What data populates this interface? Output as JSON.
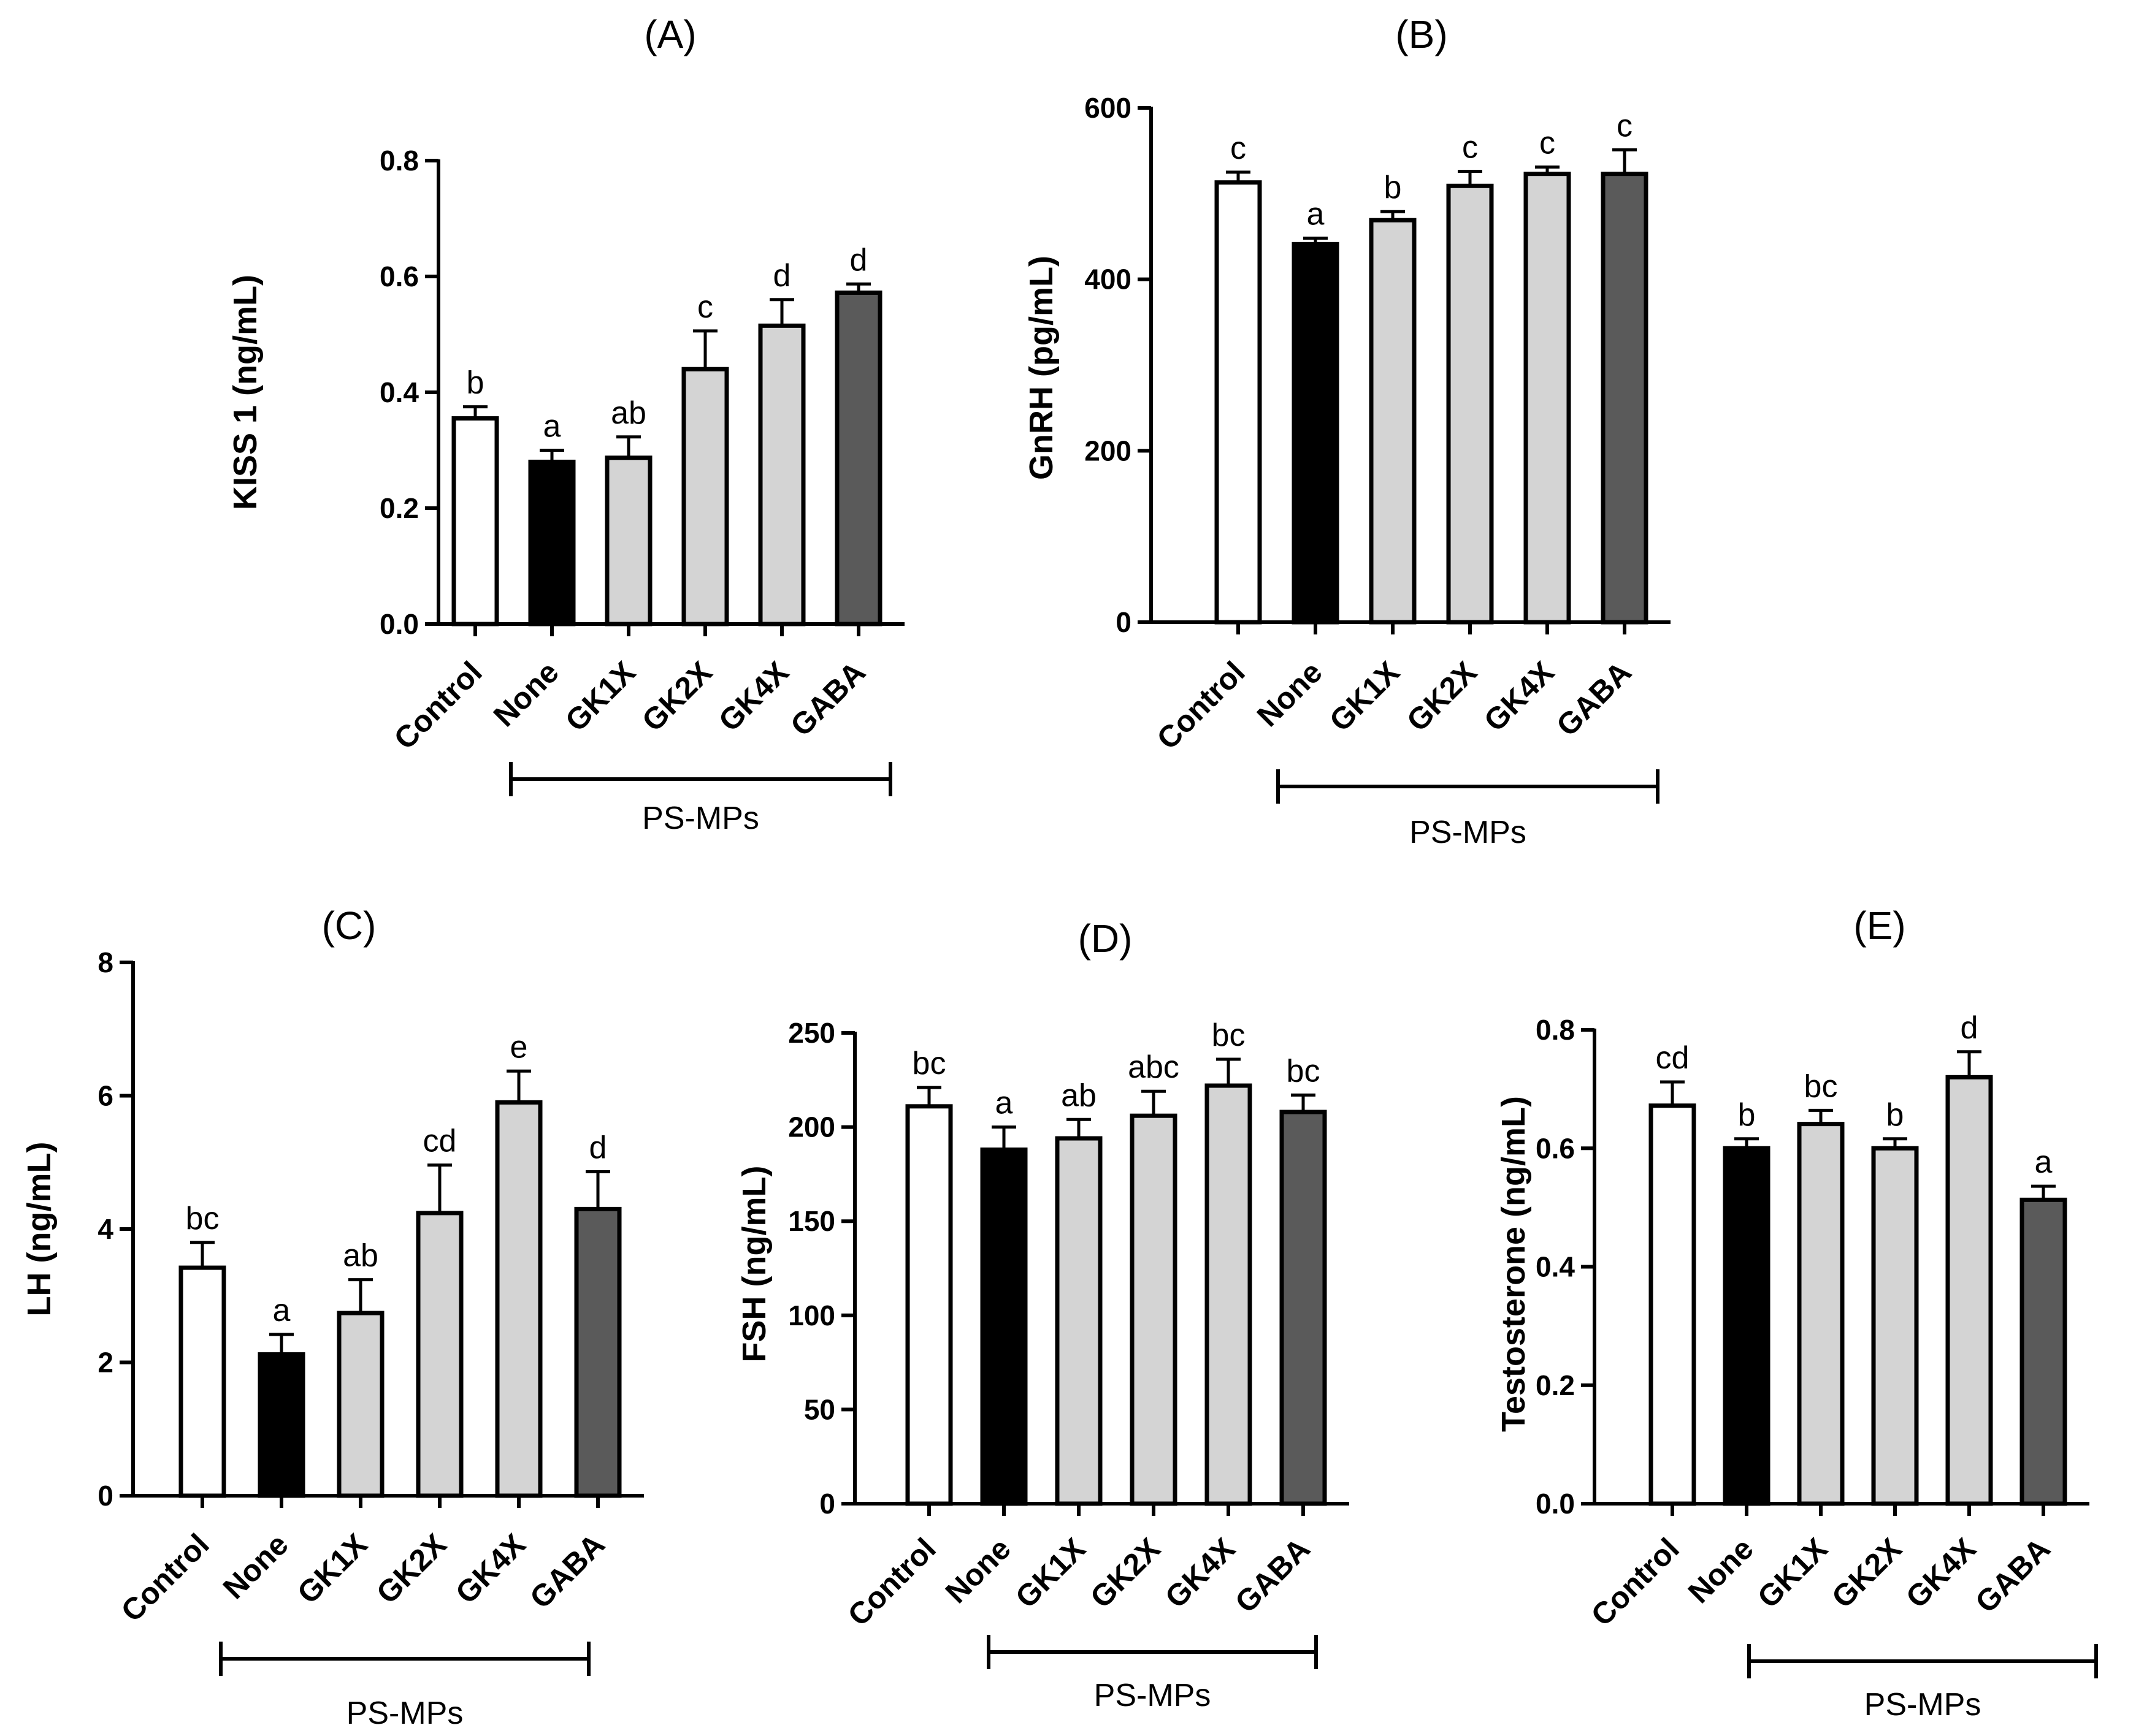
{
  "chart_data": [
    {
      "id": "A",
      "type": "bar",
      "title": "(A)",
      "ylabel": "KISS 1 (ng/mL)",
      "categories": [
        "Control",
        "None",
        "GK1X",
        "GK2X",
        "GK4X",
        "GABA"
      ],
      "values": [
        0.355,
        0.28,
        0.287,
        0.44,
        0.515,
        0.572
      ],
      "errors": [
        0.02,
        0.02,
        0.036,
        0.066,
        0.045,
        0.015
      ],
      "letters": [
        "b",
        "a",
        "ab",
        "c",
        "d",
        "d"
      ],
      "ylim": [
        0,
        0.8
      ],
      "yticks": [
        "0.0",
        "0.2",
        "0.4",
        "0.6",
        "0.8"
      ],
      "group_label": "PS-MPs"
    },
    {
      "id": "B",
      "type": "bar",
      "title": "(B)",
      "ylabel": "GnRH (pg/mL)",
      "categories": [
        "Control",
        "None",
        "GK1X",
        "GK2X",
        "GK4X",
        "GABA"
      ],
      "values": [
        513,
        441,
        469,
        509,
        523,
        523
      ],
      "errors": [
        12,
        7,
        10,
        17,
        8,
        28
      ],
      "letters": [
        "c",
        "a",
        "b",
        "c",
        "c",
        "c"
      ],
      "ylim": [
        0,
        600
      ],
      "yticks": [
        "0",
        "200",
        "400",
        "600"
      ],
      "group_label": "PS-MPs"
    },
    {
      "id": "C",
      "type": "bar",
      "title": "(C)",
      "ylabel": "LH (ng/mL)",
      "categories": [
        "Control",
        "None",
        "GK1X",
        "GK2X",
        "GK4X",
        "GABA"
      ],
      "values": [
        3.42,
        2.12,
        2.74,
        4.24,
        5.9,
        4.3
      ],
      "errors": [
        0.38,
        0.3,
        0.5,
        0.72,
        0.47,
        0.56
      ],
      "letters": [
        "bc",
        "a",
        "ab",
        "cd",
        "e",
        "d"
      ],
      "ylim": [
        0,
        8
      ],
      "yticks": [
        "0",
        "2",
        "4",
        "6",
        "8"
      ],
      "group_label": "PS-MPs"
    },
    {
      "id": "D",
      "type": "bar",
      "title": "(D)",
      "ylabel": "FSH (ng/mL)",
      "categories": [
        "Control",
        "None",
        "GK1X",
        "GK2X",
        "GK4X",
        "GABA"
      ],
      "values": [
        211,
        188,
        194,
        206,
        222,
        208
      ],
      "errors": [
        10,
        12,
        10,
        13,
        14,
        9
      ],
      "letters": [
        "bc",
        "a",
        "ab",
        "abc",
        "bc",
        "bc"
      ],
      "ylim": [
        0,
        250
      ],
      "yticks": [
        "0",
        "50",
        "100",
        "150",
        "200",
        "250"
      ],
      "group_label": "PS-MPs"
    },
    {
      "id": "E",
      "type": "bar",
      "title": "(E)",
      "ylabel": "Testosterone (ng/mL)",
      "categories": [
        "Control",
        "None",
        "GK1X",
        "GK2X",
        "GK4X",
        "GABA"
      ],
      "values": [
        0.672,
        0.6,
        0.641,
        0.6,
        0.72,
        0.513
      ],
      "errors": [
        0.04,
        0.016,
        0.023,
        0.016,
        0.043,
        0.023
      ],
      "letters": [
        "cd",
        "b",
        "bc",
        "b",
        "d",
        "a"
      ],
      "ylim": [
        0,
        0.8
      ],
      "yticks": [
        "0.0",
        "0.2",
        "0.4",
        "0.6",
        "0.8"
      ],
      "group_label": "PS-MPs"
    }
  ],
  "bar_colors": [
    "#ffffff",
    "#000000",
    "#d4d4d4",
    "#d4d4d4",
    "#d4d4d4",
    "#5a5a5a"
  ]
}
